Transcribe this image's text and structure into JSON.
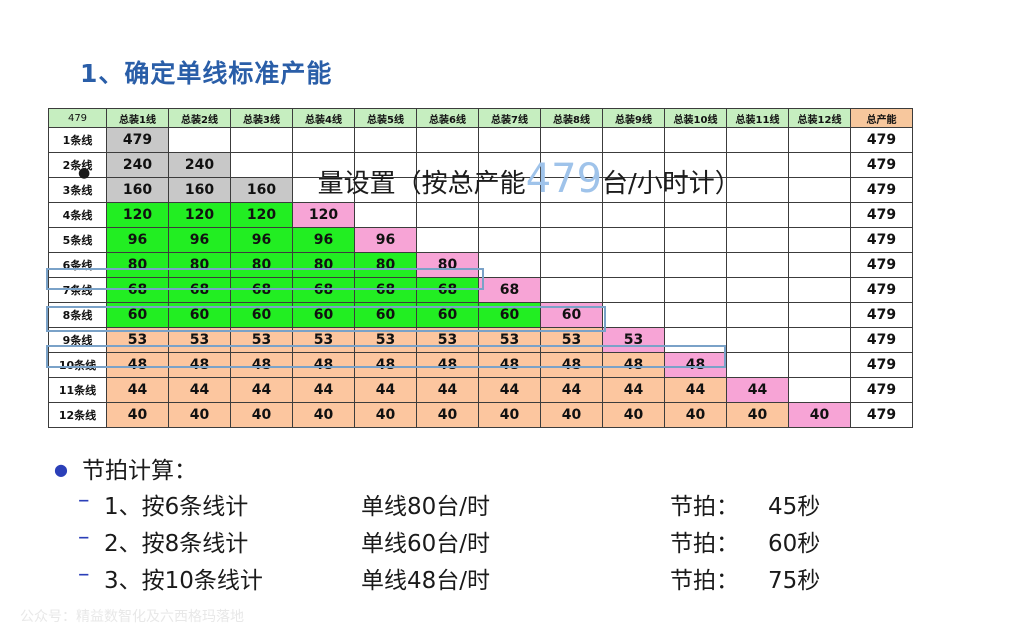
{
  "title": "1、确定单线标准产能",
  "table": {
    "corner": "479",
    "headers": [
      "总装1线",
      "总装2线",
      "总装3线",
      "总装4线",
      "总装5线",
      "总装6线",
      "总装7线",
      "总装8线",
      "总装9线",
      "总装10线",
      "总装11线",
      "总装12线"
    ],
    "total_header": "总产能",
    "rows": [
      {
        "label": "1条线",
        "values": [
          "479"
        ],
        "total": "479"
      },
      {
        "label": "2条线",
        "values": [
          "240",
          "240"
        ],
        "total": "479"
      },
      {
        "label": "3条线",
        "values": [
          "160",
          "160",
          "160"
        ],
        "total": "479"
      },
      {
        "label": "4条线",
        "values": [
          "120",
          "120",
          "120",
          "120"
        ],
        "total": "479"
      },
      {
        "label": "5条线",
        "values": [
          "96",
          "96",
          "96",
          "96",
          "96"
        ],
        "total": "479"
      },
      {
        "label": "6条线",
        "values": [
          "80",
          "80",
          "80",
          "80",
          "80",
          "80"
        ],
        "total": "479"
      },
      {
        "label": "7条线",
        "values": [
          "68",
          "68",
          "68",
          "68",
          "68",
          "68",
          "68"
        ],
        "total": "479"
      },
      {
        "label": "8条线",
        "values": [
          "60",
          "60",
          "60",
          "60",
          "60",
          "60",
          "60",
          "60"
        ],
        "total": "479"
      },
      {
        "label": "9条线",
        "values": [
          "53",
          "53",
          "53",
          "53",
          "53",
          "53",
          "53",
          "53",
          "53"
        ],
        "total": "479"
      },
      {
        "label": "10条线",
        "values": [
          "48",
          "48",
          "48",
          "48",
          "48",
          "48",
          "48",
          "48",
          "48",
          "48"
        ],
        "total": "479"
      },
      {
        "label": "11条线",
        "values": [
          "44",
          "44",
          "44",
          "44",
          "44",
          "44",
          "44",
          "44",
          "44",
          "44",
          "44"
        ],
        "total": "479"
      },
      {
        "label": "12条线",
        "values": [
          "40",
          "40",
          "40",
          "40",
          "40",
          "40",
          "40",
          "40",
          "40",
          "40",
          "40",
          "40"
        ],
        "total": "479"
      }
    ]
  },
  "overlay": {
    "pre": "                             量设置（按总产能",
    "number": "479",
    "post": "台/小时计）"
  },
  "takt": {
    "heading": "节拍计算：",
    "items": [
      {
        "case": "1、按6条线计",
        "rate": "单线80台/时",
        "label": "节拍：",
        "value": "45秒"
      },
      {
        "case": "2、按8条线计",
        "rate": "单线60台/时",
        "label": "节拍：",
        "value": "60秒"
      },
      {
        "case": "3、按10条线计",
        "rate": "单线48台/时",
        "label": "节拍：",
        "value": "75秒"
      }
    ]
  },
  "watermark": "公众号：精益数智化及六西格玛落地",
  "colors": {
    "title": "#2a5ea8",
    "header_bg": "#c6eec0",
    "total_header_bg": "#f7c79d",
    "gray": "#c8c8c8",
    "green": "#22ee22",
    "orange": "#fcc69f",
    "pink": "#f7a4d6",
    "bullet": "#2b3fb8",
    "highlight_border": "#7aa2c8"
  }
}
